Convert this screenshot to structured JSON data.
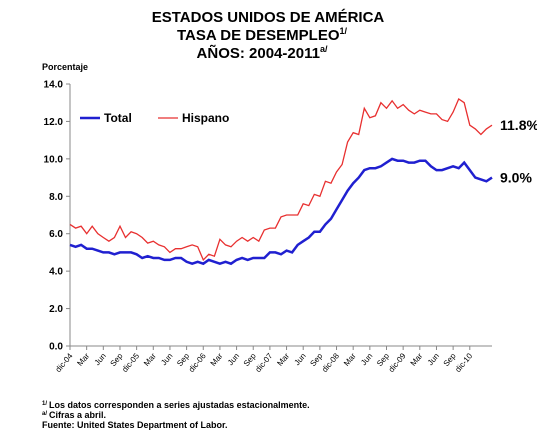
{
  "chart_data": {
    "type": "line",
    "title": {
      "line1": "ESTADOS UNIDOS DE AMÉRICA",
      "line2": "TASA DE DESEMPLEO",
      "line2_note": "1/",
      "line3": "AÑOS: 2004-2011",
      "line3_note": "a/"
    },
    "y_label": "Porcentaje",
    "categories": [
      "dic-04",
      null,
      null,
      "Mar",
      null,
      null,
      "Jun",
      null,
      null,
      "Sep",
      null,
      null,
      "dic-05",
      null,
      null,
      "Mar",
      null,
      null,
      "Jun",
      null,
      null,
      "Sep",
      null,
      null,
      "dic-06",
      null,
      null,
      "Mar",
      null,
      null,
      "Jun",
      null,
      null,
      "Sep",
      null,
      null,
      "dic-07",
      null,
      null,
      "Mar",
      null,
      null,
      "Jun",
      null,
      null,
      "Sep",
      null,
      null,
      "dic-08",
      null,
      null,
      "Mar",
      null,
      null,
      "Jun",
      null,
      null,
      "Sep",
      null,
      null,
      "dic-09",
      null,
      null,
      "Mar",
      null,
      null,
      "Jun",
      null,
      null,
      "Sep",
      null,
      null,
      "dic-10",
      null,
      null,
      null,
      null
    ],
    "series": [
      {
        "name": "Total",
        "color": "#2020d0",
        "end_label": "9.0%",
        "values": [
          5.4,
          5.3,
          5.4,
          5.2,
          5.2,
          5.1,
          5.0,
          5.0,
          4.9,
          5.0,
          5.0,
          5.0,
          4.9,
          4.7,
          4.8,
          4.7,
          4.7,
          4.6,
          4.6,
          4.7,
          4.7,
          4.5,
          4.4,
          4.5,
          4.4,
          4.6,
          4.5,
          4.4,
          4.5,
          4.4,
          4.6,
          4.7,
          4.6,
          4.7,
          4.7,
          4.7,
          5.0,
          5.0,
          4.9,
          5.1,
          5.0,
          5.4,
          5.6,
          5.8,
          6.1,
          6.1,
          6.5,
          6.8,
          7.3,
          7.8,
          8.3,
          8.7,
          9.0,
          9.4,
          9.5,
          9.5,
          9.6,
          9.8,
          10.0,
          9.9,
          9.9,
          9.8,
          9.8,
          9.9,
          9.9,
          9.6,
          9.4,
          9.4,
          9.5,
          9.6,
          9.5,
          9.8,
          9.4,
          9.0,
          8.9,
          8.8,
          9.0
        ]
      },
      {
        "name": "Hispano",
        "color": "#e83030",
        "end_label": "11.8%",
        "values": [
          6.5,
          6.3,
          6.4,
          6.0,
          6.4,
          6.0,
          5.8,
          5.6,
          5.8,
          6.4,
          5.8,
          6.1,
          6.0,
          5.8,
          5.5,
          5.6,
          5.4,
          5.3,
          5.0,
          5.2,
          5.2,
          5.3,
          5.4,
          5.3,
          4.6,
          4.9,
          4.8,
          5.7,
          5.4,
          5.3,
          5.6,
          5.8,
          5.6,
          5.8,
          5.6,
          6.2,
          6.3,
          6.3,
          6.9,
          7.0,
          7.0,
          7.0,
          7.6,
          7.5,
          8.1,
          8.0,
          8.8,
          8.7,
          9.3,
          9.7,
          10.9,
          11.4,
          11.3,
          12.7,
          12.2,
          12.3,
          13.0,
          12.7,
          13.1,
          12.7,
          12.9,
          12.6,
          12.4,
          12.6,
          12.5,
          12.4,
          12.4,
          12.1,
          12.0,
          12.5,
          13.2,
          13.0,
          11.8,
          11.6,
          11.3,
          11.6,
          11.8
        ]
      }
    ],
    "ylim": [
      0,
      14
    ],
    "yticks": [
      {
        "value": 0,
        "label": "0.0"
      },
      {
        "value": 2,
        "label": "2.0"
      },
      {
        "value": 4,
        "label": "4.0"
      },
      {
        "value": 6,
        "label": "6.0"
      },
      {
        "value": 8,
        "label": "8.0"
      },
      {
        "value": 10,
        "label": "10.0"
      },
      {
        "value": 12,
        "label": "12.0"
      },
      {
        "value": 14,
        "label": "14.0"
      }
    ],
    "legend": "upper left",
    "footnotes": [
      {
        "mark": "1/",
        "text": "Los datos corresponden a series ajustadas estacionalmente."
      },
      {
        "mark": "a/",
        "text": "Cifras a abril."
      }
    ],
    "source": "Fuente: United States Department of Labor."
  }
}
